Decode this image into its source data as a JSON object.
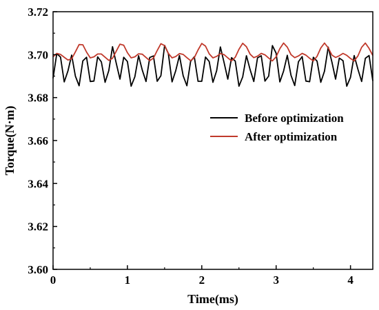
{
  "chart_data": {
    "type": "line",
    "xlabel": "Time(ms)",
    "ylabel": "Torque(N·m)",
    "xlim": [
      0,
      4.3
    ],
    "ylim": [
      3.6,
      3.72
    ],
    "x_ticks": [
      "0",
      "1",
      "2",
      "3",
      "4"
    ],
    "y_ticks": [
      "3.60",
      "3.62",
      "3.64",
      "3.66",
      "3.68",
      "3.70",
      "3.72"
    ],
    "grid": false,
    "legend_position": "center-right",
    "series": [
      {
        "name": "Before optimization",
        "color": "#000000",
        "x": [
          0.0,
          0.05,
          0.1,
          0.15,
          0.2,
          0.25,
          0.3,
          0.35,
          0.4,
          0.45,
          0.5,
          0.55,
          0.6,
          0.65,
          0.7,
          0.75,
          0.8,
          0.85,
          0.9,
          0.95,
          1.0,
          1.05,
          1.1,
          1.15,
          1.2,
          1.25,
          1.3,
          1.35,
          1.4,
          1.45,
          1.5,
          1.55,
          1.6,
          1.65,
          1.7,
          1.75,
          1.8,
          1.85,
          1.9,
          1.95,
          2.0,
          2.05,
          2.1,
          2.15,
          2.2,
          2.25,
          2.3,
          2.35,
          2.4,
          2.45,
          2.5,
          2.55,
          2.6,
          2.65,
          2.7,
          2.75,
          2.8,
          2.85,
          2.9,
          2.95,
          3.0,
          3.05,
          3.1,
          3.15,
          3.2,
          3.25,
          3.3,
          3.35,
          3.4,
          3.45,
          3.5,
          3.55,
          3.6,
          3.65,
          3.7,
          3.75,
          3.8,
          3.85,
          3.9,
          3.95,
          4.0,
          4.05,
          4.1,
          4.15,
          4.2,
          4.25,
          4.3
        ],
        "y": [
          3.689,
          3.7005,
          3.6989,
          3.6873,
          3.6924,
          3.6998,
          3.69,
          3.6855,
          3.6971,
          3.6988,
          3.6875,
          3.6877,
          3.699,
          3.6966,
          3.6871,
          3.6926,
          3.7037,
          3.696,
          3.6886,
          3.6988,
          3.6968,
          3.6853,
          3.6897,
          3.6995,
          3.6928,
          3.6875,
          3.6987,
          3.6994,
          3.6876,
          3.6902,
          3.7043,
          3.7005,
          3.6873,
          3.6925,
          3.6996,
          3.6902,
          3.6855,
          3.6969,
          3.699,
          3.6876,
          3.6876,
          3.6989,
          3.6968,
          3.6871,
          3.6925,
          3.7036,
          3.6963,
          3.6886,
          3.6986,
          3.697,
          3.6853,
          3.6896,
          3.6995,
          3.693,
          3.6875,
          3.6985,
          3.6995,
          3.6877,
          3.69,
          3.7042,
          3.7007,
          3.6873,
          3.6923,
          3.6997,
          3.6904,
          3.6856,
          3.6967,
          3.6991,
          3.6877,
          3.6874,
          3.6988,
          3.697,
          3.6871,
          3.6923,
          3.7035,
          3.6965,
          3.6886,
          3.6984,
          3.6972,
          3.6853,
          3.6894,
          3.6996,
          3.6932,
          3.6875,
          3.6983,
          3.6996,
          3.6878
        ]
      },
      {
        "name": "After optimization",
        "color": "#c0392b",
        "x": [
          0.0,
          0.05,
          0.1,
          0.15,
          0.2,
          0.25,
          0.3,
          0.35,
          0.4,
          0.45,
          0.5,
          0.55,
          0.6,
          0.65,
          0.7,
          0.75,
          0.8,
          0.85,
          0.9,
          0.95,
          1.0,
          1.05,
          1.1,
          1.15,
          1.2,
          1.25,
          1.3,
          1.35,
          1.4,
          1.45,
          1.5,
          1.55,
          1.6,
          1.65,
          1.7,
          1.75,
          1.8,
          1.85,
          1.9,
          1.95,
          2.0,
          2.05,
          2.1,
          2.15,
          2.2,
          2.25,
          2.3,
          2.35,
          2.4,
          2.45,
          2.5,
          2.55,
          2.6,
          2.65,
          2.7,
          2.75,
          2.8,
          2.85,
          2.9,
          2.95,
          3.0,
          3.05,
          3.1,
          3.15,
          3.2,
          3.25,
          3.3,
          3.35,
          3.4,
          3.45,
          3.5,
          3.55,
          3.6,
          3.65,
          3.7,
          3.75,
          3.8,
          3.85,
          3.9,
          3.95,
          4.0,
          4.05,
          4.1,
          4.15,
          4.2,
          4.25,
          4.3
        ],
        "y": [
          3.699,
          3.7006,
          3.7001,
          3.6988,
          3.6975,
          3.6981,
          3.7013,
          3.7047,
          3.7046,
          3.7012,
          3.6985,
          3.699,
          3.7003,
          3.7003,
          3.6988,
          3.6973,
          3.6983,
          3.7016,
          3.7049,
          3.7044,
          3.7009,
          3.6985,
          3.699,
          3.7004,
          3.7002,
          3.6987,
          3.6972,
          3.6984,
          3.7019,
          3.7051,
          3.7042,
          3.7006,
          3.6985,
          3.6991,
          3.7005,
          3.7001,
          3.6986,
          3.6972,
          3.6986,
          3.7022,
          3.7052,
          3.704,
          3.7004,
          3.6985,
          3.6992,
          3.7005,
          3.7,
          3.6985,
          3.6971,
          3.6988,
          3.7025,
          3.7053,
          3.7037,
          3.7002,
          3.6986,
          3.6993,
          3.7006,
          3.6999,
          3.6984,
          3.6971,
          3.699,
          3.7028,
          3.7054,
          3.7035,
          3.7,
          3.6986,
          3.6994,
          3.7006,
          3.6998,
          3.6983,
          3.6971,
          3.6992,
          3.7031,
          3.7054,
          3.7032,
          3.6998,
          3.6987,
          3.6995,
          3.7006,
          3.6997,
          3.6982,
          3.6971,
          3.6994,
          3.7034,
          3.7054,
          3.7029,
          3.6996
        ]
      }
    ]
  }
}
